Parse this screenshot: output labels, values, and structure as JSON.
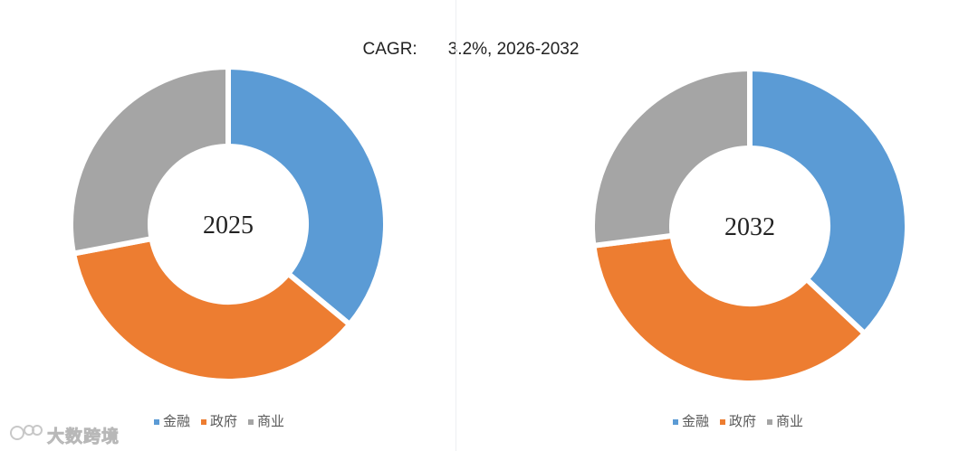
{
  "header": {
    "cagr_label": "CAGR:",
    "cagr_value": "3.2%, 2026-2032"
  },
  "watermark": {
    "text": "大数跨境"
  },
  "colors": {
    "金融": "#5b9bd5",
    "政府": "#ed7d31",
    "商业": "#a5a5a5"
  },
  "chart_data": [
    {
      "type": "pie",
      "subtype": "donut",
      "center_label": "2025",
      "categories": [
        "金融",
        "政府",
        "商业"
      ],
      "values": [
        36,
        36,
        28
      ],
      "unit": "%",
      "legend": [
        "金融",
        "政府",
        "商业"
      ],
      "legend_position": "bottom"
    },
    {
      "type": "pie",
      "subtype": "donut",
      "center_label": "2032",
      "categories": [
        "金融",
        "政府",
        "商业"
      ],
      "values": [
        37,
        36,
        27
      ],
      "unit": "%",
      "legend": [
        "金融",
        "政府",
        "商业"
      ],
      "legend_position": "bottom"
    }
  ]
}
